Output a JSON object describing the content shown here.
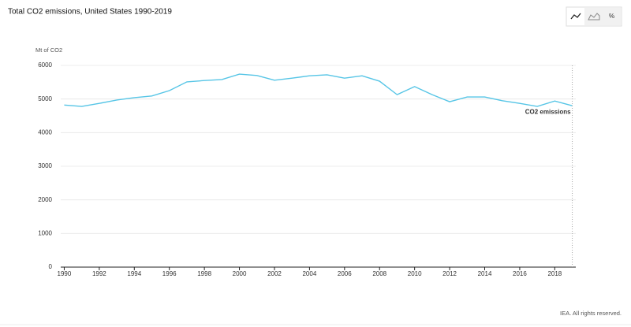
{
  "chart_data": {
    "type": "line",
    "title": "Total CO2 emissions, United States 1990-2019",
    "y_axis_label": "Mt of CO2",
    "x": [
      1990,
      1991,
      1992,
      1993,
      1994,
      1995,
      1996,
      1997,
      1998,
      1999,
      2000,
      2001,
      2002,
      2003,
      2004,
      2005,
      2006,
      2007,
      2008,
      2009,
      2010,
      2011,
      2012,
      2013,
      2014,
      2015,
      2016,
      2017,
      2018,
      2019
    ],
    "series": [
      {
        "name": "CO2 emissions",
        "color": "#56c5e6",
        "values": [
          4820,
          4780,
          4870,
          4970,
          5040,
          5090,
          5250,
          5510,
          5550,
          5580,
          5740,
          5700,
          5560,
          5620,
          5690,
          5720,
          5620,
          5690,
          5530,
          5130,
          5370,
          5130,
          4920,
          5060,
          5060,
          4950,
          4870,
          4780,
          4940,
          4800
        ]
      }
    ],
    "xlim": [
      1989.8,
      2019.2
    ],
    "xticks": [
      1990,
      1992,
      1994,
      1996,
      1998,
      2000,
      2002,
      2004,
      2006,
      2008,
      2010,
      2012,
      2014,
      2016,
      2018
    ],
    "ylim": [
      0,
      6000
    ],
    "yticks": [
      0,
      1000,
      2000,
      3000,
      4000,
      5000,
      6000
    ],
    "grid": true,
    "source": "IEA. All rights reserved."
  },
  "toolbar": {
    "percent": "%"
  }
}
